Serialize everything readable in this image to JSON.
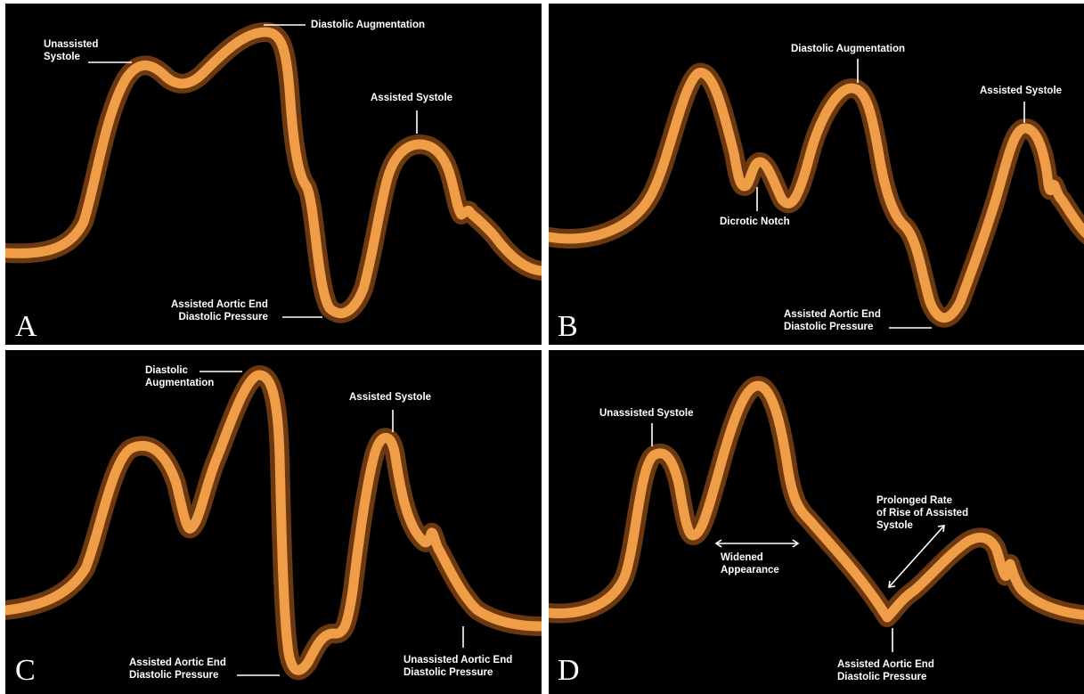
{
  "panels": {
    "A": {
      "letter": "A",
      "unassisted_systole": "Unassisted\nSystole",
      "diastolic_augmentation": "Diastolic Augmentation",
      "assisted_systole": "Assisted Systole",
      "assisted_aortic_end": "Assisted Aortic End\nDiastolic Pressure"
    },
    "B": {
      "letter": "B",
      "diastolic_augmentation": "Diastolic Augmentation",
      "assisted_systole": "Assisted Systole",
      "dicrotic_notch": "Dicrotic Notch",
      "assisted_aortic_end": "Assisted Aortic End\nDiastolic Pressure"
    },
    "C": {
      "letter": "C",
      "diastolic_augmentation": "Diastolic\nAugmentation",
      "assisted_systole": "Assisted Systole",
      "assisted_aortic_end": "Assisted Aortic End\nDiastolic Pressure",
      "unassisted_aortic_end": "Unassisted Aortic End\nDiastolic Pressure"
    },
    "D": {
      "letter": "D",
      "unassisted_systole": "Unassisted Systole",
      "widened_appearance": "Widened\nAppearance",
      "prolonged_rate": "Prolonged Rate\nof Rise of Assisted\nSystole",
      "assisted_aortic_end": "Assisted Aortic End\nDiastolic Pressure"
    }
  },
  "colors": {
    "waveform": "#f09d48",
    "waveform_glow": "#c5661d",
    "background": "#000000",
    "text": "#ffffff"
  }
}
